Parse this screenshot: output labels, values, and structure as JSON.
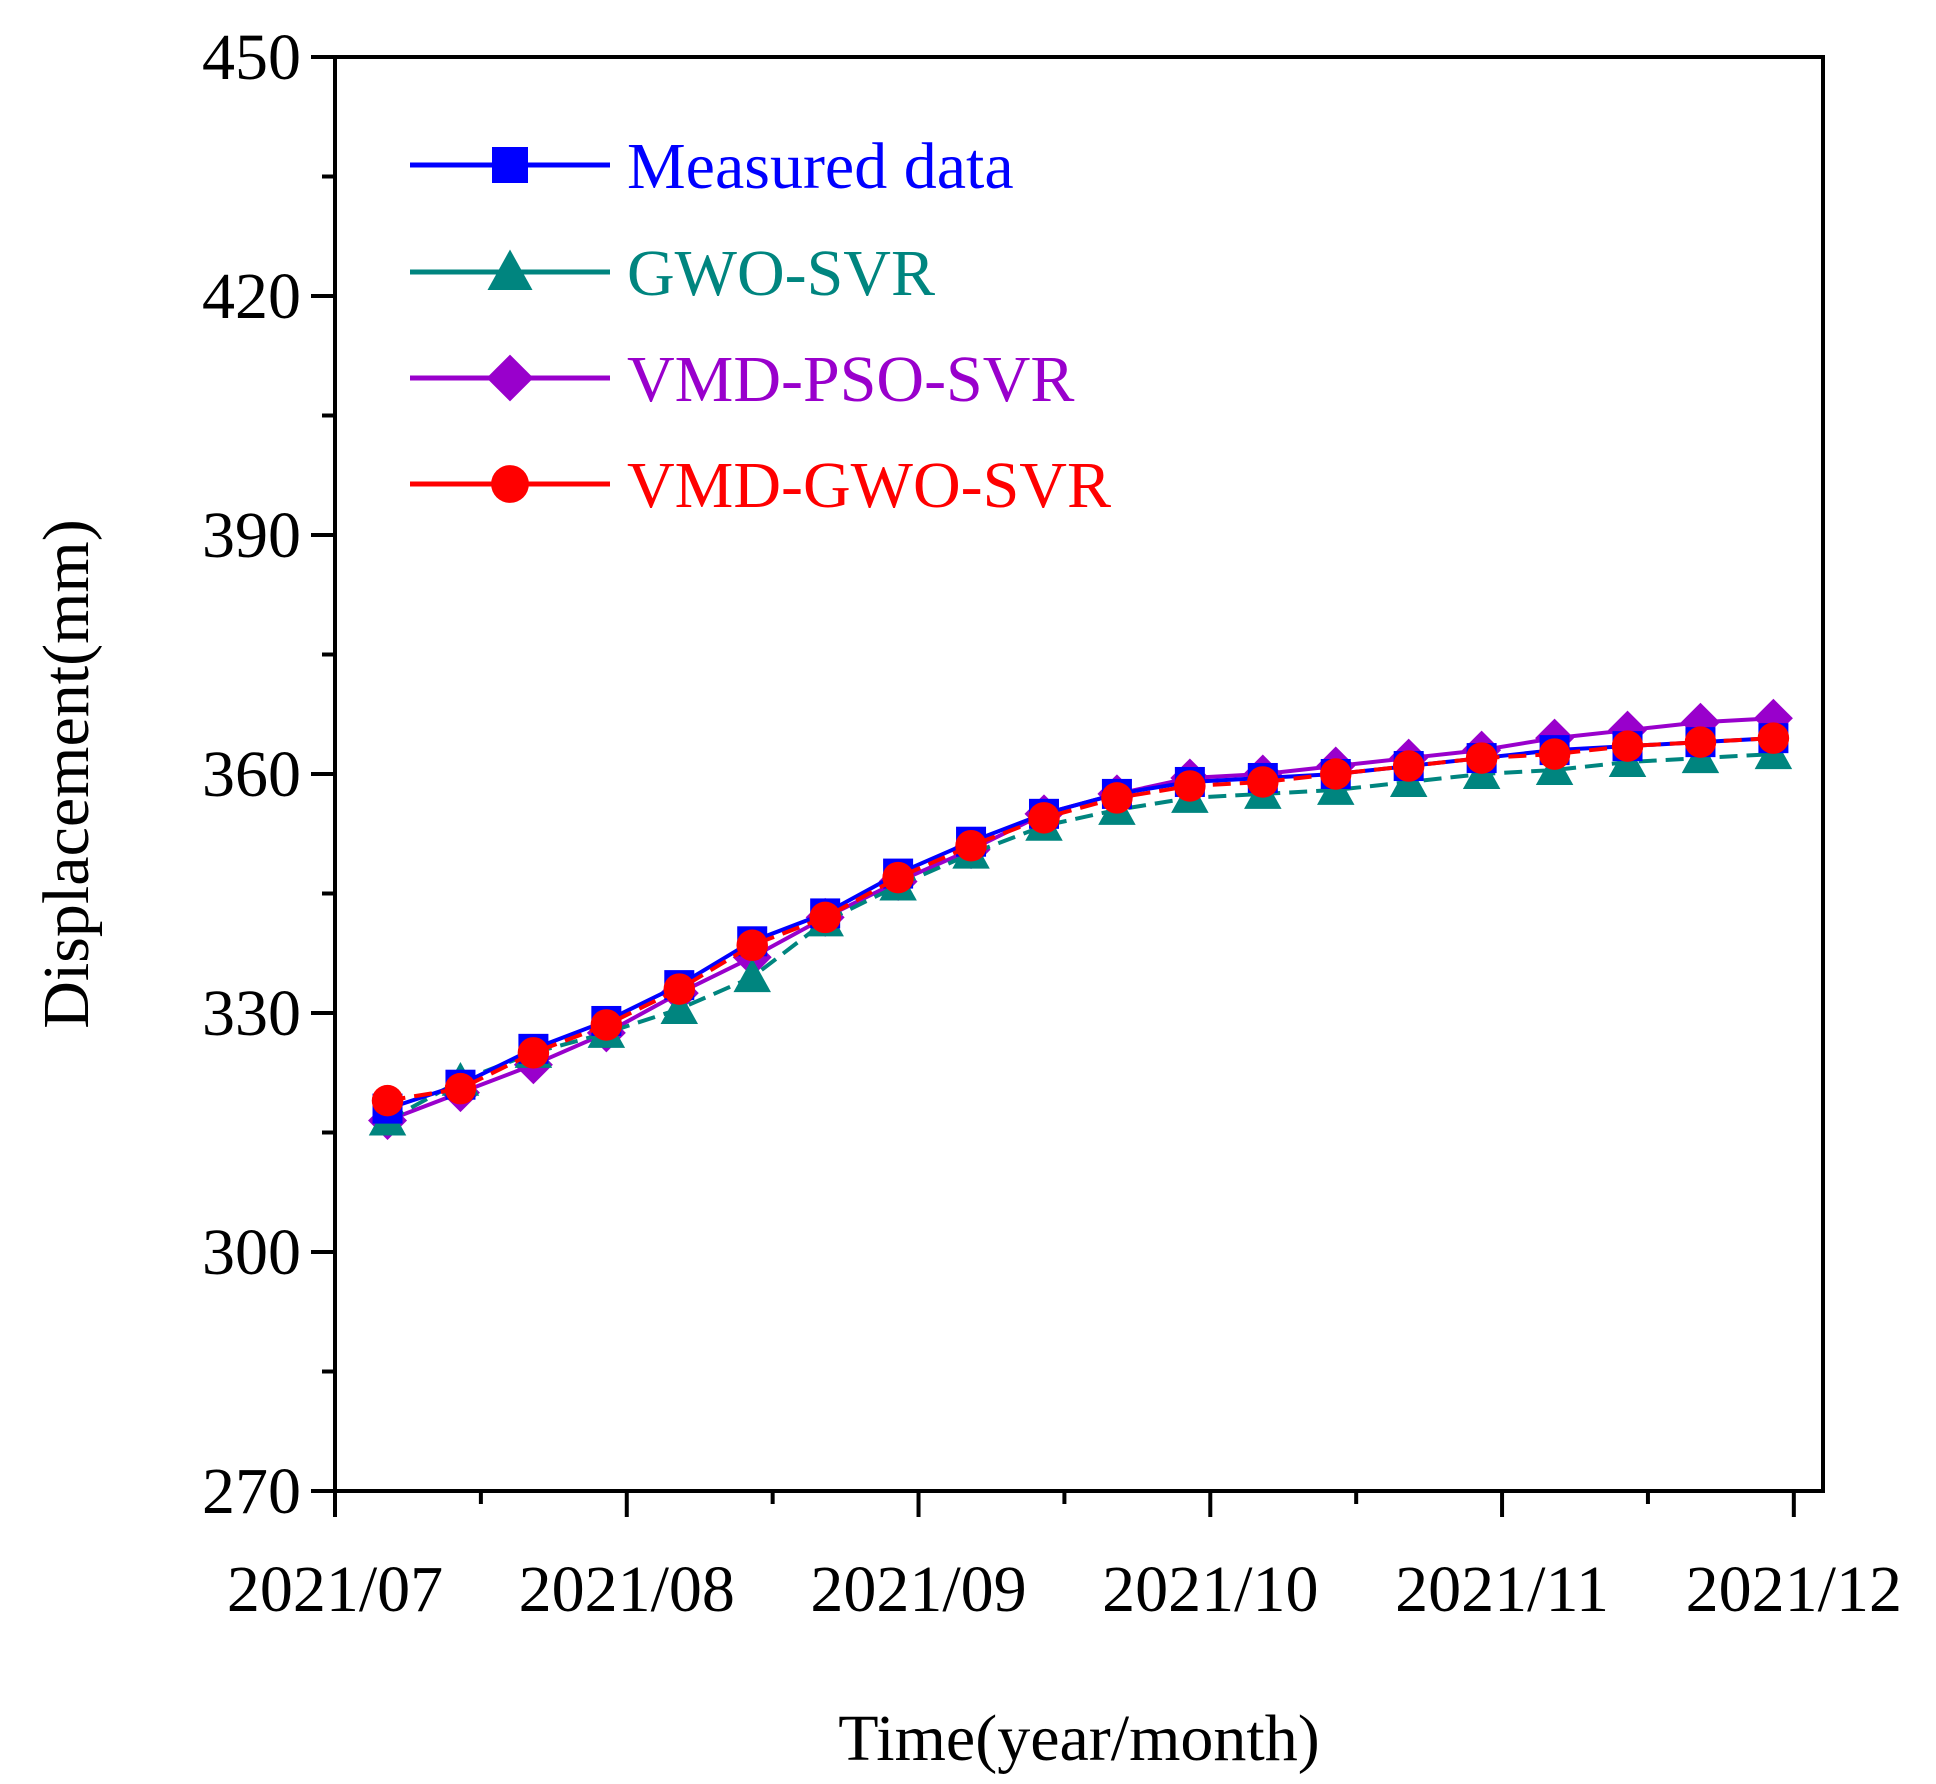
{
  "chart_data": {
    "type": "line",
    "title": "",
    "xlabel": "Time(year/month)",
    "ylabel": "Displacement(mm)",
    "x_tick_labels": [
      "2021/07",
      "2021/08",
      "2021/09",
      "2021/10",
      "2021/11",
      "2021/12"
    ],
    "y_ticks": [
      270,
      300,
      330,
      360,
      390,
      420,
      450
    ],
    "ylim": [
      270,
      450
    ],
    "xlim": [
      0,
      25.5
    ],
    "x": [
      0.9,
      2.15,
      3.4,
      4.65,
      5.9,
      7.15,
      8.4,
      9.65,
      10.9,
      12.15,
      13.4,
      14.65,
      15.9,
      17.15,
      18.4,
      19.65,
      20.9,
      22.15,
      23.4,
      24.65
    ],
    "grid": false,
    "legend_position": "top-left",
    "series": [
      {
        "name": "Measured data",
        "color": "#0000ff",
        "marker": "square",
        "dash": "solid",
        "values": [
          318.0,
          321.0,
          325.5,
          329.0,
          333.5,
          339.0,
          342.5,
          347.5,
          351.5,
          355.0,
          357.5,
          359.0,
          359.5,
          360.0,
          361.0,
          362.0,
          363.0,
          363.5,
          364.0,
          364.5
        ]
      },
      {
        "name": "GWO-SVR",
        "color": "#00857f",
        "marker": "triangle",
        "dash": "dashed",
        "values": [
          316.5,
          321.5,
          325.0,
          327.5,
          330.5,
          334.5,
          341.5,
          346.0,
          350.0,
          353.5,
          355.5,
          357.0,
          357.5,
          358.0,
          359.0,
          360.0,
          360.5,
          361.5,
          362.0,
          362.5
        ]
      },
      {
        "name": "VMD-PSO-SVR",
        "color": "#9900cc",
        "marker": "diamond",
        "dash": "solid",
        "values": [
          316.5,
          320.0,
          323.5,
          327.5,
          332.5,
          337.0,
          342.0,
          346.5,
          350.5,
          355.0,
          357.5,
          359.5,
          360.0,
          361.0,
          362.0,
          363.0,
          364.5,
          365.5,
          366.5,
          367.0
        ]
      },
      {
        "name": "VMD-GWO-SVR",
        "color": "#ff0000",
        "marker": "circle",
        "dash": "dashed",
        "values": [
          319.0,
          320.5,
          325.0,
          328.5,
          333.0,
          338.5,
          342.0,
          347.0,
          351.0,
          354.5,
          357.0,
          358.5,
          359.0,
          360.0,
          361.0,
          362.0,
          362.5,
          363.5,
          364.0,
          364.5
        ]
      }
    ]
  }
}
